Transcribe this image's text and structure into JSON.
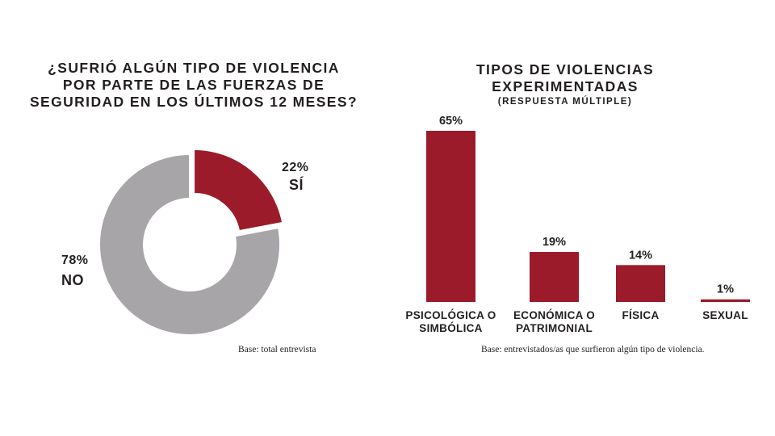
{
  "chart_data": [
    {
      "type": "pie",
      "variant": "donut",
      "title_lines": [
        "¿SUFRIÓ ALGÚN TIPO DE VIOLENCIA",
        "POR PARTE DE LAS FUERZAS DE",
        "SEGURIDAD EN LOS ÚLTIMOS 12 MESES?"
      ],
      "slices": [
        {
          "label": "SÍ",
          "value": 22,
          "value_label": "22%",
          "color": "#9b1b2b"
        },
        {
          "label": "NO",
          "value": 78,
          "value_label": "78%",
          "color": "#a7a5a8"
        }
      ],
      "base": "Base: total entrevista"
    },
    {
      "type": "bar",
      "title_lines": [
        "TIPOS DE VIOLENCIAS",
        "EXPERIMENTADAS"
      ],
      "subtitle": "(RESPUESTA MÚLTIPLE)",
      "categories": [
        [
          "PSICOLÓGICA O",
          "SIMBÓLICA"
        ],
        [
          "ECONÓMICA O",
          "PATRIMONIAL"
        ],
        [
          "FÍSICA"
        ],
        [
          "SEXUAL"
        ]
      ],
      "values": [
        65,
        19,
        14,
        1
      ],
      "value_labels": [
        "65%",
        "19%",
        "14%",
        "1%"
      ],
      "ylim": [
        0,
        65
      ],
      "color": "#9b1b2b",
      "base": "Base: entrevistados/as que surfieron algún tipo de violencia."
    }
  ]
}
